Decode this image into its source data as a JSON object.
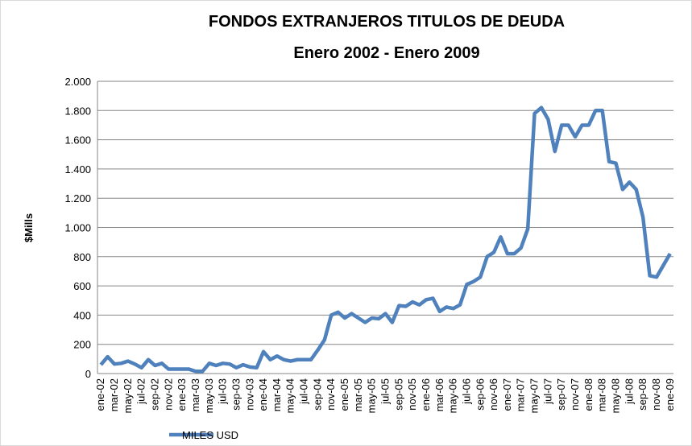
{
  "chart_data": {
    "type": "line",
    "title": "FONDOS EXTRANJEROS TITULOS DE DEUDA",
    "subtitle": "Enero 2002 - Enero 2009",
    "y_label": "$Mills",
    "categories": [
      "ene-02",
      null,
      "mar-02",
      null,
      "may-02",
      null,
      "jul-02",
      null,
      "sep-02",
      null,
      "nov-02",
      null,
      "ene-03",
      null,
      "mar-03",
      null,
      "may-03",
      null,
      "jul-03",
      null,
      "sep-03",
      null,
      "nov-03",
      null,
      "ene-04",
      null,
      "mar-04",
      null,
      "may-04",
      null,
      "jul-04",
      null,
      "sep-04",
      null,
      "nov-04",
      null,
      "ene-05",
      null,
      "mar-05",
      null,
      "may-05",
      null,
      "jul-05",
      null,
      "sep-05",
      null,
      "nov-05",
      null,
      "ene-06",
      null,
      "mar-06",
      null,
      "may-06",
      null,
      "jul-06",
      null,
      "sep-06",
      null,
      "nov-06",
      null,
      "ene-07",
      null,
      "mar-07",
      null,
      "may-07",
      null,
      "jul-07",
      null,
      "sep-07",
      null,
      "nov-07",
      null,
      "ene-08",
      null,
      "mar-08",
      null,
      "may-08",
      null,
      "jul-08",
      null,
      "sep-08",
      null,
      "nov-08",
      null,
      "ene-09"
    ],
    "series": [
      {
        "name": "MILES USD",
        "color": "#4f81bd",
        "values": [
          60,
          115,
          65,
          70,
          85,
          65,
          40,
          95,
          55,
          70,
          30,
          30,
          30,
          30,
          15,
          15,
          70,
          55,
          70,
          65,
          40,
          60,
          45,
          40,
          150,
          95,
          120,
          95,
          85,
          95,
          95,
          95,
          160,
          230,
          400,
          420,
          380,
          410,
          380,
          350,
          380,
          375,
          410,
          350,
          465,
          460,
          490,
          470,
          505,
          515,
          425,
          455,
          445,
          470,
          610,
          630,
          660,
          800,
          830,
          935,
          820,
          820,
          860,
          990,
          1780,
          1820,
          1740,
          1520,
          1700,
          1700,
          1620,
          1700,
          1700,
          1800,
          1800,
          1450,
          1440,
          1260,
          1310,
          1260,
          1070,
          670,
          660,
          740,
          820
        ]
      }
    ],
    "ylim": [
      0,
      2000
    ],
    "yticks": [
      0,
      200,
      400,
      600,
      800,
      {
        "value": 1000,
        "label": "1.000"
      },
      {
        "value": 1200,
        "label": "1.200"
      },
      {
        "value": 1400,
        "label": "1.400"
      },
      {
        "value": 1600,
        "label": "1.600"
      },
      {
        "value": 1800,
        "label": "1.800"
      },
      {
        "value": 2000,
        "label": "2.000"
      }
    ],
    "grid": true
  }
}
